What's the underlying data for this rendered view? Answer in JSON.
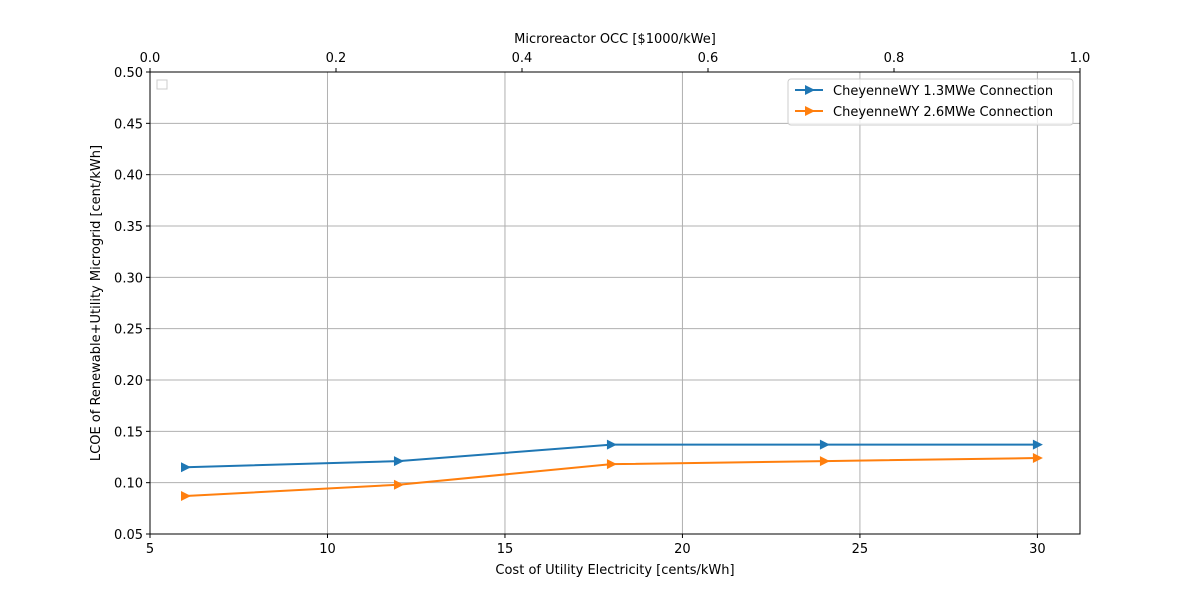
{
  "chart_data": {
    "type": "line",
    "title": "",
    "xlabel": "Cost of Utility Electricity [cents/kWh]",
    "ylabel": "LCOE of Renewable+Utility Microgrid [cent/kWh]",
    "xlim": [
      5,
      31.2
    ],
    "ylim": [
      0.05,
      0.5
    ],
    "x_ticks": [
      "5",
      "10",
      "15",
      "20",
      "25",
      "30"
    ],
    "y_ticks": [
      "0.05",
      "0.10",
      "0.15",
      "0.20",
      "0.25",
      "0.30",
      "0.35",
      "0.40",
      "0.45",
      "0.50"
    ],
    "top_axis": {
      "label": "Microreactor OCC [$1000/kWe]",
      "lim": [
        0,
        1
      ],
      "ticks": [
        "0.0",
        "0.2",
        "0.4",
        "0.6",
        "0.8",
        "1.0"
      ]
    },
    "grid": true,
    "legend_position": "top-right",
    "x": [
      6,
      12,
      18,
      24,
      30
    ],
    "series": [
      {
        "name": "CheyenneWY 1.3MWe Connection",
        "color": "#1f77b4",
        "marker": "triangle-right",
        "values": [
          0.115,
          0.121,
          0.137,
          0.137,
          0.137
        ]
      },
      {
        "name": "CheyenneWY 2.6MWe Connection",
        "color": "#ff7f0e",
        "marker": "triangle-right",
        "values": [
          0.087,
          0.098,
          0.118,
          0.121,
          0.124
        ]
      }
    ]
  }
}
